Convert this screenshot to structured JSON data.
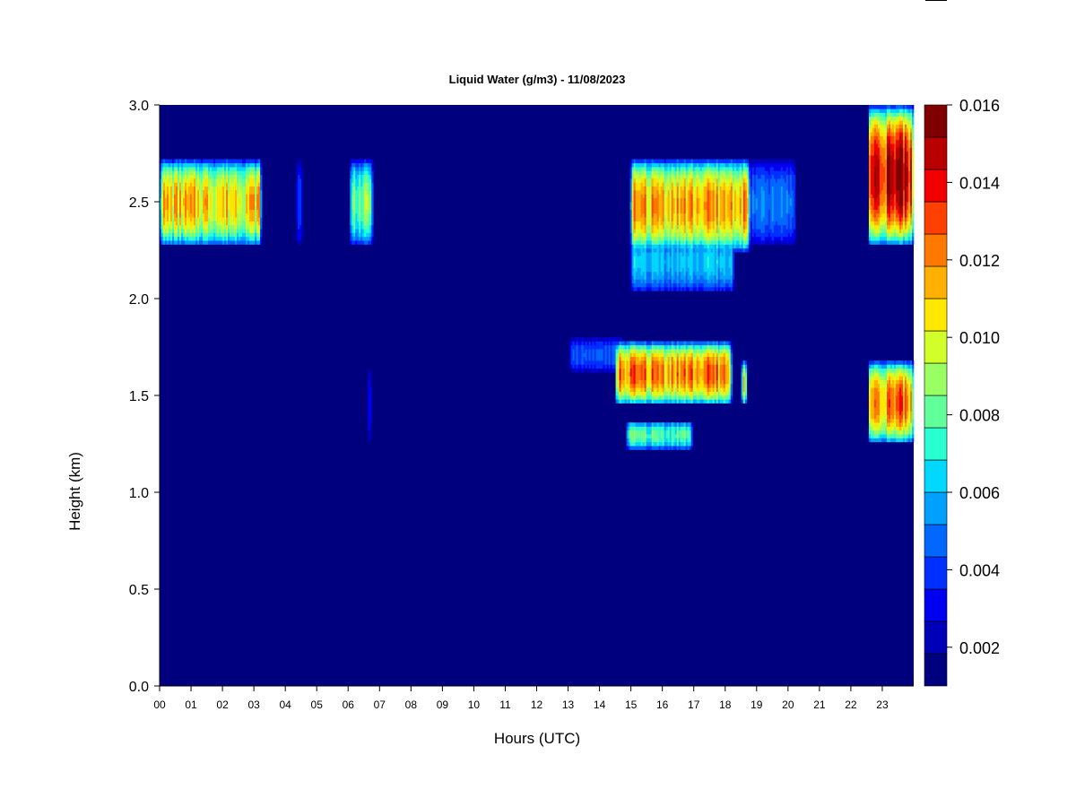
{
  "chart_data": {
    "type": "heatmap",
    "title": "Liquid Water (g/m3) - 11/08/2023",
    "xlabel": "Hours (UTC)",
    "ylabel": "Height (km)",
    "xlim": [
      0,
      24
    ],
    "ylim": [
      0,
      3
    ],
    "x_ticks": [
      "00",
      "01",
      "02",
      "03",
      "04",
      "05",
      "06",
      "07",
      "08",
      "09",
      "10",
      "11",
      "12",
      "13",
      "14",
      "15",
      "16",
      "17",
      "18",
      "19",
      "20",
      "21",
      "22",
      "23"
    ],
    "y_ticks": [
      "0.0",
      "0.5",
      "1.0",
      "1.5",
      "2.0",
      "2.5",
      "3.0"
    ],
    "colorbar": {
      "min": 0.001,
      "max": 0.016,
      "ticks": [
        {
          "value": 0.002,
          "label": "0.002"
        },
        {
          "value": 0.004,
          "label": "0.004"
        },
        {
          "value": 0.006,
          "label": "0.006"
        },
        {
          "value": 0.008,
          "label": "0.008"
        },
        {
          "value": 0.01,
          "label": "0.010"
        },
        {
          "value": 0.012,
          "label": "0.012"
        },
        {
          "value": 0.014,
          "label": "0.014"
        },
        {
          "value": 0.016,
          "label": "0.016"
        }
      ],
      "colors": [
        "#00007f",
        "#0000b8",
        "#0000f0",
        "#0030ff",
        "#0068ff",
        "#00a0ff",
        "#00d8ff",
        "#2affd2",
        "#62ff9a",
        "#9aff62",
        "#d2ff2a",
        "#ffe800",
        "#ffb000",
        "#ff7800",
        "#ff4000",
        "#f00000",
        "#b80000",
        "#7f0000"
      ]
    },
    "background_value": 0.001,
    "cloud_layers": [
      {
        "t0": 0.0,
        "t1": 3.25,
        "h_base": 2.27,
        "h_top": 2.72,
        "peak": 0.0112
      },
      {
        "t0": 4.35,
        "t1": 4.55,
        "h_base": 2.27,
        "h_top": 2.72,
        "peak": 0.005
      },
      {
        "t0": 6.05,
        "t1": 6.8,
        "h_base": 2.27,
        "h_top": 2.72,
        "peak": 0.0085
      },
      {
        "t0": 6.65,
        "t1": 6.72,
        "h_base": 1.25,
        "h_top": 1.65,
        "peak": 0.006
      },
      {
        "t0": 15.0,
        "t1": 18.8,
        "h_base": 2.24,
        "h_top": 2.72,
        "peak": 0.0118
      },
      {
        "t0": 15.0,
        "t1": 18.3,
        "h_base": 2.03,
        "h_top": 2.35,
        "peak": 0.0062
      },
      {
        "t0": 18.8,
        "t1": 20.25,
        "h_base": 2.27,
        "h_top": 2.72,
        "peak": 0.005
      },
      {
        "t0": 13.05,
        "t1": 14.75,
        "h_base": 1.62,
        "h_top": 1.8,
        "peak": 0.0045
      },
      {
        "t0": 14.5,
        "t1": 18.2,
        "h_base": 1.45,
        "h_top": 1.78,
        "peak": 0.0124
      },
      {
        "t0": 14.85,
        "t1": 16.95,
        "h_base": 1.22,
        "h_top": 1.37,
        "peak": 0.008
      },
      {
        "t0": 18.5,
        "t1": 18.7,
        "h_base": 1.45,
        "h_top": 1.68,
        "peak": 0.0105
      },
      {
        "t0": 22.55,
        "t1": 24.0,
        "h_base": 1.25,
        "h_top": 1.68,
        "peak": 0.0125
      },
      {
        "t0": 22.55,
        "t1": 24.0,
        "h_base": 2.27,
        "h_top": 3.0,
        "peak": 0.015
      }
    ],
    "grid": false,
    "legend": "colorbar-right"
  }
}
